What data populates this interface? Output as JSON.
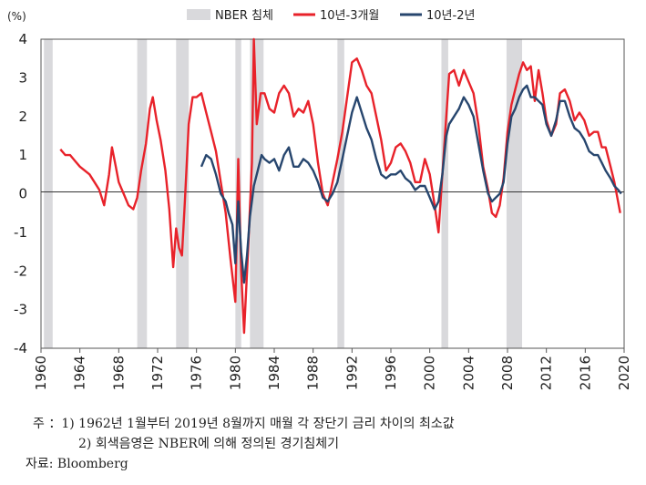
{
  "chart_data": {
    "type": "line",
    "unit_label": "(%)",
    "xlim": [
      1960,
      2020
    ],
    "ylim": [
      -4,
      4
    ],
    "x_ticks": [
      "1960",
      "1964",
      "1968",
      "1972",
      "1976",
      "1980",
      "1984",
      "1988",
      "1992",
      "1996",
      "2000",
      "2004",
      "2008",
      "2012",
      "2016",
      "2020"
    ],
    "y_ticks": [
      "4",
      "3",
      "2",
      "1",
      "0",
      "-1",
      "-2",
      "-3",
      "-4"
    ],
    "legend": {
      "placement": "top",
      "items": [
        {
          "label": "NBER 침체",
          "kind": "bar",
          "color": "#d9d9dc"
        },
        {
          "label": "10년-3개월",
          "kind": "line",
          "color": "#e8222a"
        },
        {
          "label": "10년-2년",
          "kind": "line",
          "color": "#27466e"
        }
      ]
    },
    "recessions": [
      [
        1960.3,
        1961.2
      ],
      [
        1969.9,
        1970.9
      ],
      [
        1973.9,
        1975.2
      ],
      [
        1980.0,
        1980.6
      ],
      [
        1981.5,
        1982.9
      ],
      [
        1990.5,
        1991.2
      ],
      [
        2001.2,
        2001.9
      ],
      [
        2007.9,
        2009.5
      ]
    ],
    "series": [
      {
        "name": "10년-3개월",
        "color": "#e8222a",
        "points": [
          [
            1962.0,
            1.15
          ],
          [
            1962.5,
            1.0
          ],
          [
            1963.0,
            1.0
          ],
          [
            1963.5,
            0.85
          ],
          [
            1964.0,
            0.7
          ],
          [
            1964.5,
            0.6
          ],
          [
            1965.0,
            0.5
          ],
          [
            1965.5,
            0.3
          ],
          [
            1966.0,
            0.1
          ],
          [
            1966.5,
            -0.3
          ],
          [
            1967.0,
            0.5
          ],
          [
            1967.3,
            1.2
          ],
          [
            1967.7,
            0.7
          ],
          [
            1968.0,
            0.3
          ],
          [
            1968.5,
            0.0
          ],
          [
            1969.0,
            -0.3
          ],
          [
            1969.5,
            -0.4
          ],
          [
            1969.9,
            -0.1
          ],
          [
            1970.3,
            0.6
          ],
          [
            1970.8,
            1.3
          ],
          [
            1971.2,
            2.2
          ],
          [
            1971.5,
            2.5
          ],
          [
            1971.9,
            1.9
          ],
          [
            1972.3,
            1.4
          ],
          [
            1972.8,
            0.6
          ],
          [
            1973.2,
            -0.4
          ],
          [
            1973.6,
            -1.9
          ],
          [
            1973.9,
            -0.9
          ],
          [
            1974.2,
            -1.4
          ],
          [
            1974.5,
            -1.6
          ],
          [
            1974.8,
            -0.2
          ],
          [
            1975.2,
            1.8
          ],
          [
            1975.6,
            2.5
          ],
          [
            1976.0,
            2.5
          ],
          [
            1976.5,
            2.6
          ],
          [
            1977.0,
            2.1
          ],
          [
            1977.5,
            1.6
          ],
          [
            1978.0,
            1.1
          ],
          [
            1978.5,
            0.3
          ],
          [
            1979.0,
            -0.5
          ],
          [
            1979.5,
            -1.7
          ],
          [
            1980.0,
            -2.8
          ],
          [
            1980.3,
            0.9
          ],
          [
            1980.6,
            -2.0
          ],
          [
            1980.9,
            -3.6
          ],
          [
            1981.3,
            -1.5
          ],
          [
            1981.7,
            0.8
          ],
          [
            1981.9,
            4.0
          ],
          [
            1982.2,
            1.8
          ],
          [
            1982.6,
            2.6
          ],
          [
            1983.0,
            2.6
          ],
          [
            1983.5,
            2.2
          ],
          [
            1984.0,
            2.1
          ],
          [
            1984.5,
            2.6
          ],
          [
            1985.0,
            2.8
          ],
          [
            1985.5,
            2.6
          ],
          [
            1986.0,
            2.0
          ],
          [
            1986.5,
            2.2
          ],
          [
            1987.0,
            2.1
          ],
          [
            1987.5,
            2.4
          ],
          [
            1988.0,
            1.8
          ],
          [
            1988.5,
            0.8
          ],
          [
            1989.0,
            0.0
          ],
          [
            1989.5,
            -0.3
          ],
          [
            1990.0,
            0.3
          ],
          [
            1990.5,
            0.9
          ],
          [
            1991.0,
            1.6
          ],
          [
            1991.5,
            2.5
          ],
          [
            1992.0,
            3.4
          ],
          [
            1992.5,
            3.5
          ],
          [
            1993.0,
            3.2
          ],
          [
            1993.5,
            2.8
          ],
          [
            1994.0,
            2.6
          ],
          [
            1994.5,
            2.0
          ],
          [
            1995.0,
            1.4
          ],
          [
            1995.5,
            0.6
          ],
          [
            1996.0,
            0.8
          ],
          [
            1996.5,
            1.2
          ],
          [
            1997.0,
            1.3
          ],
          [
            1997.5,
            1.1
          ],
          [
            1998.0,
            0.8
          ],
          [
            1998.5,
            0.3
          ],
          [
            1999.0,
            0.3
          ],
          [
            1999.5,
            0.9
          ],
          [
            2000.0,
            0.5
          ],
          [
            2000.5,
            -0.3
          ],
          [
            2000.9,
            -1.0
          ],
          [
            2001.3,
            0.5
          ],
          [
            2001.7,
            2.0
          ],
          [
            2002.0,
            3.1
          ],
          [
            2002.5,
            3.2
          ],
          [
            2003.0,
            2.8
          ],
          [
            2003.5,
            3.2
          ],
          [
            2004.0,
            2.9
          ],
          [
            2004.5,
            2.6
          ],
          [
            2005.0,
            1.8
          ],
          [
            2005.5,
            0.7
          ],
          [
            2006.0,
            0.1
          ],
          [
            2006.4,
            -0.5
          ],
          [
            2006.8,
            -0.6
          ],
          [
            2007.2,
            -0.3
          ],
          [
            2007.6,
            0.4
          ],
          [
            2008.0,
            1.6
          ],
          [
            2008.4,
            2.3
          ],
          [
            2008.8,
            2.7
          ],
          [
            2009.2,
            3.1
          ],
          [
            2009.6,
            3.4
          ],
          [
            2010.0,
            3.2
          ],
          [
            2010.4,
            3.3
          ],
          [
            2010.8,
            2.4
          ],
          [
            2011.2,
            3.2
          ],
          [
            2011.6,
            2.6
          ],
          [
            2012.0,
            1.9
          ],
          [
            2012.5,
            1.5
          ],
          [
            2013.0,
            1.8
          ],
          [
            2013.4,
            2.6
          ],
          [
            2013.9,
            2.7
          ],
          [
            2014.4,
            2.4
          ],
          [
            2014.9,
            1.9
          ],
          [
            2015.4,
            2.1
          ],
          [
            2015.9,
            1.9
          ],
          [
            2016.4,
            1.5
          ],
          [
            2016.9,
            1.6
          ],
          [
            2017.3,
            1.6
          ],
          [
            2017.7,
            1.2
          ],
          [
            2018.1,
            1.2
          ],
          [
            2018.6,
            0.7
          ],
          [
            2019.0,
            0.3
          ],
          [
            2019.3,
            -0.1
          ],
          [
            2019.6,
            -0.5
          ]
        ]
      },
      {
        "name": "10년-2년",
        "color": "#27466e",
        "points": [
          [
            1976.5,
            0.7
          ],
          [
            1977.0,
            1.0
          ],
          [
            1977.5,
            0.9
          ],
          [
            1978.0,
            0.5
          ],
          [
            1978.5,
            0.0
          ],
          [
            1979.0,
            -0.2
          ],
          [
            1979.3,
            -0.5
          ],
          [
            1979.7,
            -0.8
          ],
          [
            1980.0,
            -1.8
          ],
          [
            1980.3,
            -0.2
          ],
          [
            1980.6,
            -1.5
          ],
          [
            1980.9,
            -2.3
          ],
          [
            1981.2,
            -1.6
          ],
          [
            1981.5,
            -0.6
          ],
          [
            1981.9,
            0.2
          ],
          [
            1982.3,
            0.6
          ],
          [
            1982.7,
            1.0
          ],
          [
            1983.0,
            0.9
          ],
          [
            1983.5,
            0.8
          ],
          [
            1984.0,
            0.9
          ],
          [
            1984.5,
            0.6
          ],
          [
            1985.0,
            1.0
          ],
          [
            1985.5,
            1.2
          ],
          [
            1986.0,
            0.7
          ],
          [
            1986.5,
            0.7
          ],
          [
            1987.0,
            0.9
          ],
          [
            1987.5,
            0.8
          ],
          [
            1988.0,
            0.6
          ],
          [
            1988.5,
            0.3
          ],
          [
            1989.0,
            -0.1
          ],
          [
            1989.5,
            -0.2
          ],
          [
            1990.0,
            0.0
          ],
          [
            1990.5,
            0.3
          ],
          [
            1991.0,
            0.9
          ],
          [
            1991.5,
            1.5
          ],
          [
            1992.0,
            2.1
          ],
          [
            1992.5,
            2.5
          ],
          [
            1993.0,
            2.1
          ],
          [
            1993.5,
            1.7
          ],
          [
            1994.0,
            1.4
          ],
          [
            1994.5,
            0.9
          ],
          [
            1995.0,
            0.5
          ],
          [
            1995.5,
            0.4
          ],
          [
            1996.0,
            0.5
          ],
          [
            1996.5,
            0.5
          ],
          [
            1997.0,
            0.6
          ],
          [
            1997.5,
            0.4
          ],
          [
            1998.0,
            0.3
          ],
          [
            1998.5,
            0.1
          ],
          [
            1999.0,
            0.2
          ],
          [
            1999.5,
            0.2
          ],
          [
            2000.0,
            -0.1
          ],
          [
            2000.5,
            -0.4
          ],
          [
            2000.9,
            -0.2
          ],
          [
            2001.3,
            0.5
          ],
          [
            2001.7,
            1.5
          ],
          [
            2002.0,
            1.8
          ],
          [
            2002.5,
            2.0
          ],
          [
            2003.0,
            2.2
          ],
          [
            2003.5,
            2.5
          ],
          [
            2004.0,
            2.3
          ],
          [
            2004.5,
            2.0
          ],
          [
            2005.0,
            1.3
          ],
          [
            2005.5,
            0.6
          ],
          [
            2006.0,
            0.0
          ],
          [
            2006.4,
            -0.2
          ],
          [
            2006.8,
            -0.1
          ],
          [
            2007.2,
            0.0
          ],
          [
            2007.6,
            0.3
          ],
          [
            2008.0,
            1.3
          ],
          [
            2008.4,
            2.0
          ],
          [
            2008.8,
            2.2
          ],
          [
            2009.2,
            2.5
          ],
          [
            2009.6,
            2.7
          ],
          [
            2010.0,
            2.8
          ],
          [
            2010.4,
            2.5
          ],
          [
            2010.8,
            2.5
          ],
          [
            2011.2,
            2.4
          ],
          [
            2011.6,
            2.3
          ],
          [
            2012.0,
            1.8
          ],
          [
            2012.5,
            1.5
          ],
          [
            2013.0,
            1.9
          ],
          [
            2013.4,
            2.4
          ],
          [
            2013.9,
            2.4
          ],
          [
            2014.4,
            2.0
          ],
          [
            2014.9,
            1.7
          ],
          [
            2015.4,
            1.6
          ],
          [
            2015.9,
            1.4
          ],
          [
            2016.4,
            1.1
          ],
          [
            2016.9,
            1.0
          ],
          [
            2017.3,
            1.0
          ],
          [
            2017.7,
            0.8
          ],
          [
            2018.1,
            0.6
          ],
          [
            2018.6,
            0.4
          ],
          [
            2019.0,
            0.2
          ],
          [
            2019.4,
            0.1
          ],
          [
            2019.7,
            0.0
          ]
        ]
      }
    ]
  },
  "notes": {
    "prefix": "주",
    "note1": "：1) 1962년 1월부터 2019년 8월까지 매월 각 장단기 금리 차이의 최소값",
    "note2": "2) 회색음영은 NBER에 의해 정의된 경기침체기",
    "source": "자료: Bloomberg"
  }
}
